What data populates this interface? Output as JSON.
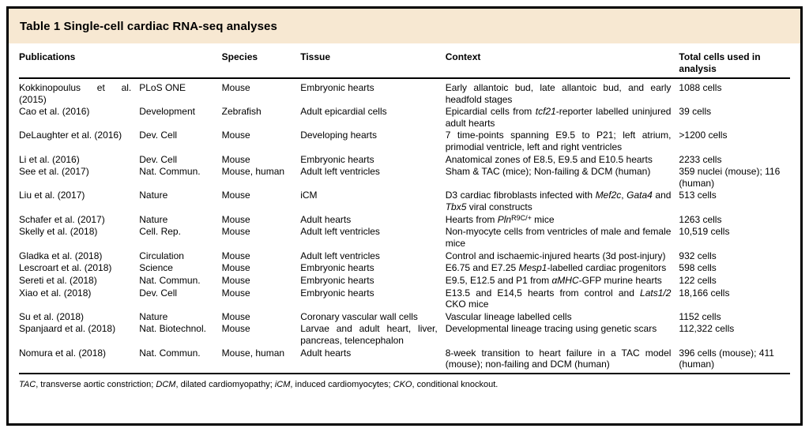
{
  "title": "Table 1 Single-cell cardiac RNA-seq analyses",
  "colors": {
    "title_bar_bg": "#f7e8d2",
    "border": "#000000",
    "text": "#000000"
  },
  "table": {
    "headers": [
      {
        "label": "Publications",
        "colspan": 2
      },
      {
        "label": "Species",
        "colspan": 1
      },
      {
        "label": "Tissue",
        "colspan": 1
      },
      {
        "label": "Context",
        "colspan": 1
      },
      {
        "label": "Total cells used in analysis",
        "colspan": 1
      }
    ],
    "rows": [
      {
        "publication": "Kokkinopoulus et al. (2015)",
        "journal": "PLoS ONE",
        "species": "Mouse",
        "tissue": "Embryonic hearts",
        "context": [
          {
            "t": "Early allantoic bud, late allantoic bud, and early headfold stages"
          }
        ],
        "cells": "1088 cells"
      },
      {
        "publication": "Cao et al. (2016)",
        "journal": "Development",
        "species": "Zebrafish",
        "tissue": "Adult epicardial cells",
        "context": [
          {
            "t": "Epicardial cells from "
          },
          {
            "t": "tcf21",
            "i": true
          },
          {
            "t": "-reporter labelled uninjured adult hearts"
          }
        ],
        "cells": "39 cells"
      },
      {
        "publication": "DeLaughter et al. (2016)",
        "journal": "Dev. Cell",
        "species": "Mouse",
        "tissue": "Developing hearts",
        "context": [
          {
            "t": "7 time-points spanning E9.5 to P21; left atrium, primodial ventricle, left and right ventricles"
          }
        ],
        "cells": ">1200 cells"
      },
      {
        "publication": "Li et al. (2016)",
        "journal": "Dev. Cell",
        "species": "Mouse",
        "tissue": "Embryonic hearts",
        "context": [
          {
            "t": "Anatomical zones of E8.5, E9.5 and E10.5 hearts"
          }
        ],
        "cells": "2233 cells"
      },
      {
        "publication": "See et al. (2017)",
        "journal": "Nat. Commun.",
        "species": "Mouse, human",
        "tissue": "Adult left ventricles",
        "context": [
          {
            "t": "Sham & TAC (mice); Non-failing & DCM (human)"
          }
        ],
        "cells": "359 nuclei (mouse); 116 (human)"
      },
      {
        "publication": "Liu et al. (2017)",
        "journal": "Nature",
        "species": "Mouse",
        "tissue": "iCM",
        "context": [
          {
            "t": "D3 cardiac fibroblasts infected with "
          },
          {
            "t": "Mef2c",
            "i": true
          },
          {
            "t": ", "
          },
          {
            "t": "Gata4",
            "i": true
          },
          {
            "t": " and "
          },
          {
            "t": "Tbx5",
            "i": true
          },
          {
            "t": " viral constructs"
          }
        ],
        "cells": "513 cells"
      },
      {
        "publication": "Schafer et al. (2017)",
        "journal": "Nature",
        "species": "Mouse",
        "tissue": "Adult hearts",
        "context": [
          {
            "t": "Hearts from "
          },
          {
            "t": "Pln",
            "i": true
          },
          {
            "t": "R9C/+",
            "sup": true
          },
          {
            "t": " mice"
          }
        ],
        "cells": "1263 cells"
      },
      {
        "publication": "Skelly et al. (2018)",
        "journal": "Cell. Rep.",
        "species": "Mouse",
        "tissue": "Adult left ventricles",
        "context": [
          {
            "t": "Non-myocyte cells from ventricles of male and female mice"
          }
        ],
        "cells": "10,519 cells"
      },
      {
        "publication": "Gladka et al. (2018)",
        "journal": "Circulation",
        "species": "Mouse",
        "tissue": "Adult left ventricles",
        "context": [
          {
            "t": "Control and ischaemic-injured hearts (3d post-injury)"
          }
        ],
        "cells": "932 cells"
      },
      {
        "publication": "Lescroart et al. (2018)",
        "journal": "Science",
        "species": "Mouse",
        "tissue": "Embryonic hearts",
        "context": [
          {
            "t": "E6.75 and E7.25 "
          },
          {
            "t": "Mesp1",
            "i": true
          },
          {
            "t": "-labelled cardiac progenitors"
          }
        ],
        "cells": "598 cells"
      },
      {
        "publication": "Sereti et al. (2018)",
        "journal": "Nat. Commun.",
        "species": "Mouse",
        "tissue": "Embryonic hearts",
        "context": [
          {
            "t": "E9.5, E12.5 and P1 from "
          },
          {
            "t": "αMHC",
            "i": true
          },
          {
            "t": "-GFP murine hearts"
          }
        ],
        "cells": "122 cells"
      },
      {
        "publication": "Xiao et al. (2018)",
        "journal": "Dev. Cell",
        "species": "Mouse",
        "tissue": "Embryonic hearts",
        "context": [
          {
            "t": "E13.5 and E14,5 hearts from control and "
          },
          {
            "t": "Lats1/2",
            "i": true
          },
          {
            "t": " CKO mice"
          }
        ],
        "cells": "18,166 cells"
      },
      {
        "publication": "Su et al. (2018)",
        "journal": "Nature",
        "species": "Mouse",
        "tissue": "Coronary vascular wall cells",
        "context": [
          {
            "t": "Vascular lineage labelled cells"
          }
        ],
        "cells": "1152 cells"
      },
      {
        "publication": "Spanjaard et al. (2018)",
        "journal": "Nat. Biotechnol.",
        "species": "Mouse",
        "tissue": "Larvae and adult heart, liver, pancreas, telencephalon",
        "context": [
          {
            "t": "Developmental lineage tracing using genetic scars"
          }
        ],
        "cells": "112,322 cells"
      },
      {
        "publication": "Nomura et al. (2018)",
        "journal": "Nat. Commun.",
        "species": "Mouse, human",
        "tissue": "Adult hearts",
        "context": [
          {
            "t": "8-week transition to heart failure in a TAC model (mouse); non-failing and DCM (human)"
          }
        ],
        "cells": "396 cells (mouse); 411 (human)"
      }
    ]
  },
  "footnote": [
    {
      "t": "TAC",
      "i": true
    },
    {
      "t": ", transverse aortic constriction; "
    },
    {
      "t": "DCM",
      "i": true
    },
    {
      "t": ", dilated cardiomyopathy; "
    },
    {
      "t": "iCM",
      "i": true
    },
    {
      "t": ", induced cardiomyocytes; "
    },
    {
      "t": "CKO",
      "i": true
    },
    {
      "t": ", conditional knockout."
    }
  ]
}
